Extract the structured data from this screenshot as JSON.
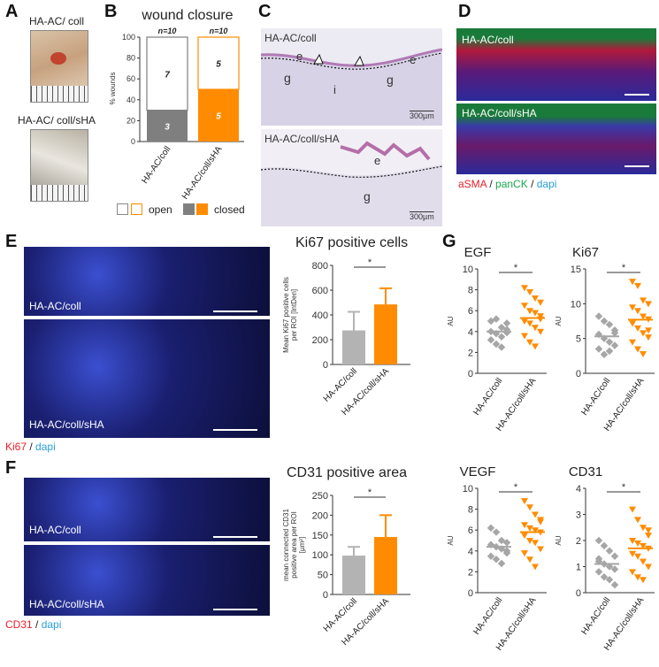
{
  "panels": {
    "A": {
      "letter": "A",
      "label1": "HA-AC/ coll",
      "label2": "HA-AC/ coll/sHA"
    },
    "B": {
      "letter": "B",
      "title": "wound closure",
      "legend_open": "open",
      "legend_closed": "closed"
    },
    "C": {
      "letter": "C",
      "label1": "HA-AC/coll",
      "label2": "HA-AC/coll/sHA",
      "scale1": "300µm",
      "scale2": "300µm",
      "marks_top": [
        "e",
        "g",
        "i",
        "g",
        "e"
      ],
      "marks_bottom": [
        "e",
        "g"
      ]
    },
    "D": {
      "letter": "D",
      "label1": "HA-AC/coll",
      "label2": "HA-AC/coll/sHA",
      "stain1": "aSMA",
      "sep1": " / ",
      "stain2": "panCK",
      "sep2": " / ",
      "stain3": "dapi"
    },
    "E": {
      "letter": "E",
      "title": "Ki67 positive cells",
      "label1": "HA-AC/coll",
      "label2": "HA-AC/coll/sHA",
      "stain1": "Ki67",
      "sep1": " / ",
      "stain2": "dapi"
    },
    "F": {
      "letter": "F",
      "title": "CD31 positive area",
      "label1": "HA-AC/coll",
      "label2": "HA-AC/coll/sHA",
      "stain1": "CD31",
      "sep1": " / ",
      "stain2": "dapi"
    },
    "G": {
      "letter": "G"
    }
  },
  "colors": {
    "coll": "#7f7f7f",
    "coll_light": "#b3b3b3",
    "shA": "#ff8c00",
    "aSMA": "#e8202a",
    "panCK": "#1aa84a",
    "dapi": "#2a9fd6"
  },
  "chart_data": [
    {
      "id": "B",
      "type": "bar",
      "stacked": true,
      "title": "wound closure",
      "ylabel": "% wounds",
      "ylim": [
        0,
        100
      ],
      "yticks": [
        0,
        20,
        40,
        60,
        80,
        100
      ],
      "categories": [
        "HA-AC/coll",
        "HA-AC/coll/sHA"
      ],
      "n_labels": [
        "n=10",
        "n=10"
      ],
      "series": [
        {
          "name": "closed",
          "values": [
            30,
            50
          ],
          "counts": [
            "3",
            "5"
          ]
        },
        {
          "name": "open",
          "values": [
            70,
            50
          ],
          "counts": [
            "7",
            "5"
          ]
        }
      ]
    },
    {
      "id": "E",
      "type": "bar",
      "title": "Ki67 positive cells",
      "ylabel_line1": "Mean Ki67 positive cells",
      "ylabel_line2": "per ROI [IntDen]",
      "ylim": [
        0,
        800
      ],
      "yticks": [
        0,
        200,
        400,
        600,
        800
      ],
      "categories": [
        "HA-AC/coll",
        "HA-AC/coll/sHA"
      ],
      "values": [
        275,
        485
      ],
      "errors": [
        150,
        130
      ],
      "significance": "*"
    },
    {
      "id": "F",
      "type": "bar",
      "title": "CD31 positive area",
      "ylabel_line1": "mean connected CD31",
      "ylabel_line2": "positive area per ROI",
      "ylabel_line3": "[µm²]",
      "ylim": [
        0,
        250
      ],
      "yticks": [
        0,
        50,
        100,
        150,
        200,
        250
      ],
      "categories": [
        "HA-AC/coll",
        "HA-AC/coll/sHA"
      ],
      "values": [
        98,
        145
      ],
      "errors": [
        22,
        55
      ],
      "significance": "*"
    },
    {
      "id": "G-EGF",
      "type": "scatter",
      "title": "EGF",
      "ylabel": "AU",
      "ylim": [
        0,
        10
      ],
      "yticks": [
        0,
        2,
        4,
        6,
        8,
        10
      ],
      "categories": [
        "HA-AC/coll",
        "HA-AC/coll/sHA"
      ],
      "means": [
        4.0,
        5.3
      ],
      "significance": "*",
      "series": [
        {
          "name": "HA-AC/coll",
          "values": [
            5.0,
            5.2,
            4.4,
            4.8,
            4.0,
            3.8,
            3.5,
            3.9,
            3.2,
            2.8,
            2.5,
            4.2
          ]
        },
        {
          "name": "HA-AC/coll/sHA",
          "values": [
            8.2,
            7.8,
            7.2,
            6.8,
            6.5,
            6.0,
            5.8,
            5.5,
            5.0,
            4.8,
            4.4,
            4.0,
            3.6,
            3.0,
            2.6,
            5.2
          ]
        }
      ]
    },
    {
      "id": "G-Ki67",
      "type": "scatter",
      "title": "Ki67",
      "ylabel": "AU",
      "ylim": [
        0,
        15
      ],
      "yticks": [
        0,
        5,
        10,
        15
      ],
      "categories": [
        "HA-AC/coll",
        "HA-AC/coll/sHA"
      ],
      "means": [
        5.3,
        7.7
      ],
      "significance": "*",
      "series": [
        {
          "name": "HA-AC/coll",
          "values": [
            8.2,
            7.5,
            7.0,
            6.2,
            5.6,
            5.0,
            4.5,
            4.0,
            3.5,
            2.7,
            3.2,
            5.8
          ]
        },
        {
          "name": "HA-AC/coll/sHA",
          "values": [
            13.2,
            12.6,
            10.5,
            10.0,
            9.5,
            9.0,
            8.2,
            7.8,
            7.2,
            6.5,
            5.8,
            5.2,
            4.5,
            3.5,
            2.8,
            6.2
          ]
        }
      ]
    },
    {
      "id": "G-VEGF",
      "type": "scatter",
      "title": "VEGF",
      "ylabel": "AU",
      "ylim": [
        0,
        10
      ],
      "yticks": [
        0,
        2,
        4,
        6,
        8,
        10
      ],
      "categories": [
        "HA-AC/coll",
        "HA-AC/coll/sHA"
      ],
      "means": [
        4.4,
        5.8
      ],
      "significance": "*",
      "series": [
        {
          "name": "HA-AC/coll",
          "values": [
            6.2,
            5.8,
            5.0,
            4.8,
            4.6,
            4.4,
            4.2,
            3.8,
            3.5,
            3.2,
            2.8,
            4.0
          ]
        },
        {
          "name": "HA-AC/coll/sHA",
          "values": [
            8.8,
            8.2,
            7.5,
            7.0,
            6.5,
            6.2,
            6.0,
            5.8,
            5.5,
            5.0,
            4.8,
            4.2,
            3.8,
            3.2,
            2.5,
            6.8
          ]
        }
      ]
    },
    {
      "id": "G-CD31",
      "type": "scatter",
      "title": "CD31",
      "ylabel": "AU",
      "ylim": [
        0,
        4
      ],
      "yticks": [
        0,
        1,
        2,
        3,
        4
      ],
      "categories": [
        "HA-AC/coll",
        "HA-AC/coll/sHA"
      ],
      "means": [
        1.1,
        1.7
      ],
      "significance": "*",
      "series": [
        {
          "name": "HA-AC/coll",
          "values": [
            2.0,
            1.8,
            1.6,
            1.4,
            1.2,
            1.1,
            1.0,
            0.9,
            0.8,
            0.6,
            0.5,
            0.3,
            1.3
          ]
        },
        {
          "name": "HA-AC/coll/sHA",
          "values": [
            3.2,
            2.8,
            2.5,
            2.2,
            2.0,
            1.9,
            1.8,
            1.7,
            1.5,
            1.4,
            1.2,
            1.0,
            0.8,
            0.6,
            0.5,
            2.4
          ]
        }
      ]
    }
  ]
}
